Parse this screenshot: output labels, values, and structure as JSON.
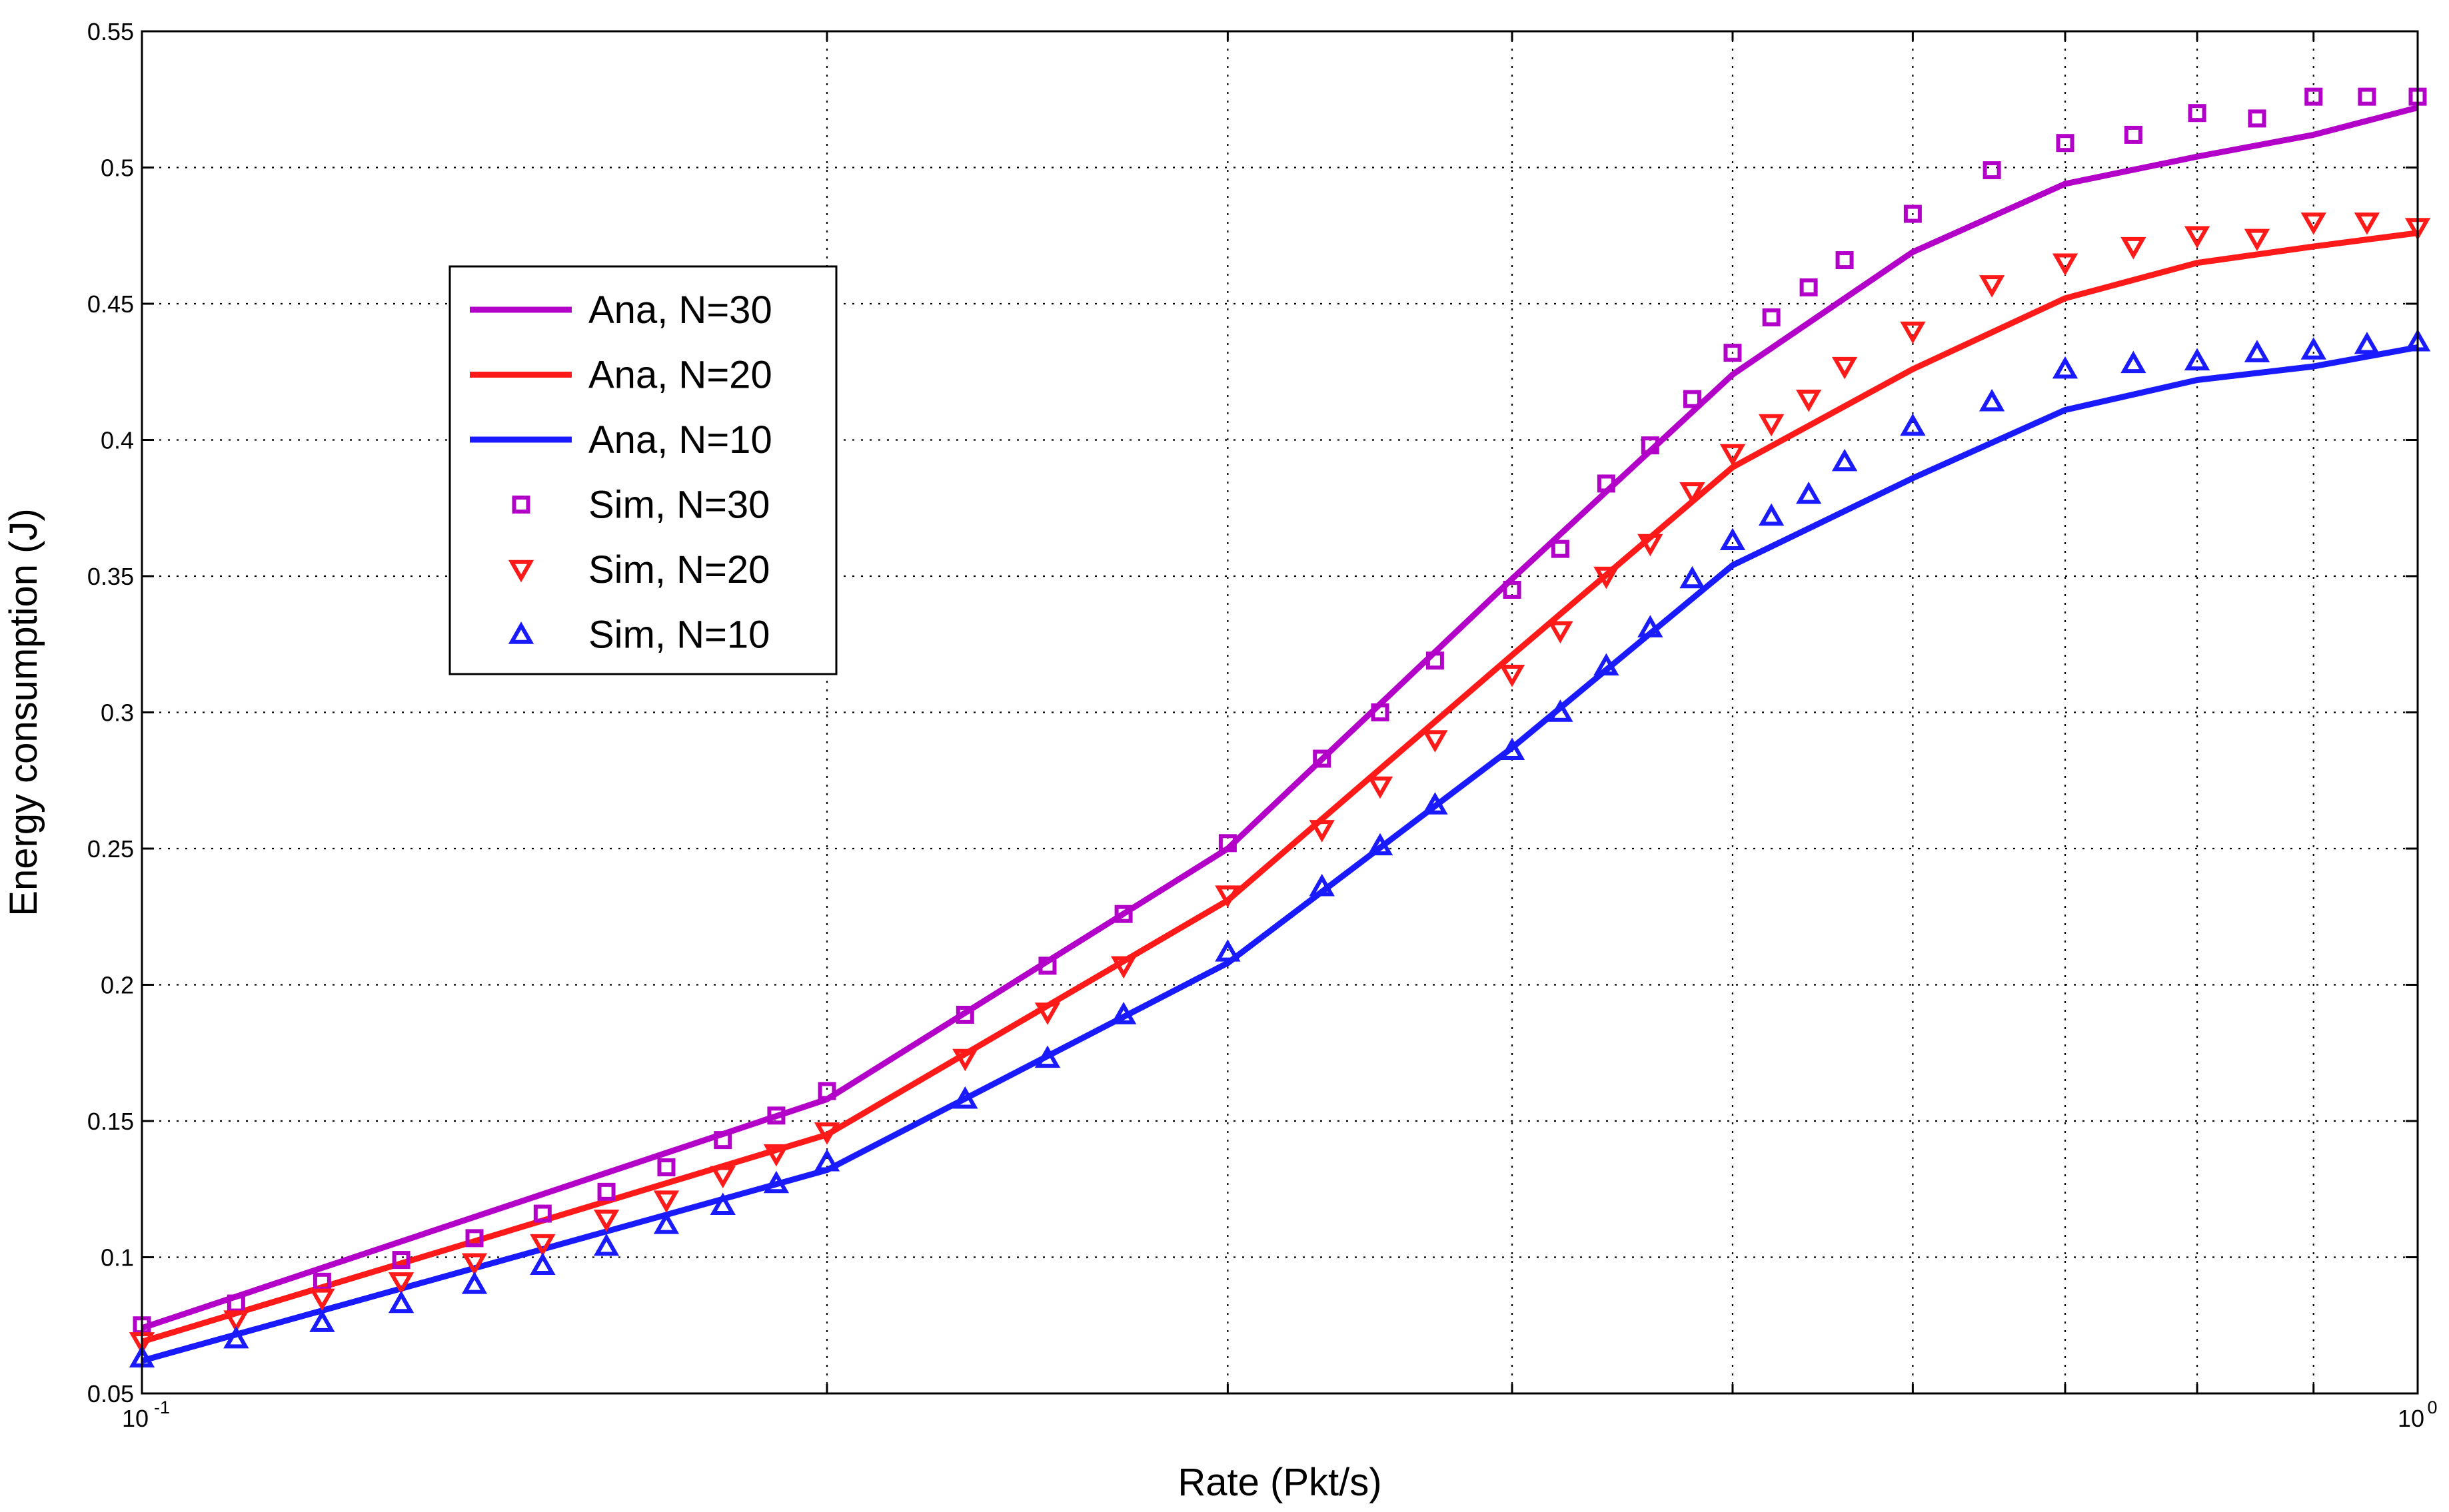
{
  "chart_data": {
    "type": "line",
    "xscale": "log",
    "xlim": [
      0.1,
      1
    ],
    "ylim": [
      0.05,
      0.55
    ],
    "grid": true,
    "xlabel": "Rate (Pkt/s)",
    "ylabel": "Energy consumption (J)",
    "yticks": [
      "0.05",
      "0.1",
      "0.15",
      "0.2",
      "0.25",
      "0.3",
      "0.35",
      "0.4",
      "0.45",
      "0.5",
      "0.55"
    ],
    "xticks_major": [
      {
        "value": 0.1,
        "base": "10",
        "exp": "-1"
      },
      {
        "value": 1,
        "base": "10",
        "exp": "0"
      }
    ],
    "xgrid": [
      0.2,
      0.3,
      0.4,
      0.5,
      0.6,
      0.7,
      0.8,
      0.9
    ],
    "legend_position": "upper-left",
    "series": [
      {
        "name": "Ana, N=30",
        "kind": "line",
        "color": "#b300c8",
        "x": [
          0.1,
          0.2,
          0.3,
          0.4,
          0.5,
          0.6,
          0.7,
          0.8,
          0.9,
          1.0
        ],
        "y": [
          0.074,
          0.158,
          0.25,
          0.349,
          0.424,
          0.469,
          0.494,
          0.504,
          0.512,
          0.522
        ]
      },
      {
        "name": "Ana, N=20",
        "kind": "line",
        "color": "#ff1a1a",
        "x": [
          0.1,
          0.2,
          0.3,
          0.4,
          0.5,
          0.6,
          0.7,
          0.8,
          0.9,
          1.0
        ],
        "y": [
          0.069,
          0.145,
          0.231,
          0.321,
          0.39,
          0.426,
          0.452,
          0.465,
          0.471,
          0.476
        ]
      },
      {
        "name": "Ana, N=10",
        "kind": "line",
        "color": "#1a1aff",
        "x": [
          0.1,
          0.2,
          0.3,
          0.4,
          0.5,
          0.6,
          0.7,
          0.8,
          0.9,
          1.0
        ],
        "y": [
          0.062,
          0.132,
          0.208,
          0.287,
          0.354,
          0.386,
          0.411,
          0.422,
          0.427,
          0.434
        ]
      },
      {
        "name": "Sim, N=30",
        "kind": "marker",
        "marker": "square",
        "color": "#b300c8",
        "x": [
          0.1,
          0.11,
          0.12,
          0.13,
          0.14,
          0.15,
          0.16,
          0.17,
          0.18,
          0.19,
          0.2,
          0.23,
          0.25,
          0.27,
          0.3,
          0.33,
          0.35,
          0.37,
          0.4,
          0.42,
          0.44,
          0.46,
          0.48,
          0.5,
          0.52,
          0.54,
          0.56,
          0.6,
          0.65,
          0.7,
          0.75,
          0.8,
          0.85,
          0.9,
          0.95,
          1.0
        ],
        "y": [
          0.075,
          0.083,
          0.091,
          0.099,
          0.107,
          0.116,
          0.124,
          0.133,
          0.143,
          0.152,
          0.161,
          0.189,
          0.207,
          0.226,
          0.252,
          0.283,
          0.3,
          0.319,
          0.345,
          0.36,
          0.384,
          0.398,
          0.415,
          0.432,
          0.445,
          0.456,
          0.466,
          0.483,
          0.499,
          0.509,
          0.512,
          0.52,
          0.518,
          0.526,
          0.526,
          0.526
        ]
      },
      {
        "name": "Sim, N=20",
        "kind": "marker",
        "marker": "triangle-down",
        "color": "#ff1a1a",
        "x": [
          0.1,
          0.11,
          0.12,
          0.13,
          0.14,
          0.15,
          0.16,
          0.17,
          0.18,
          0.19,
          0.2,
          0.23,
          0.25,
          0.27,
          0.3,
          0.33,
          0.35,
          0.37,
          0.4,
          0.42,
          0.44,
          0.46,
          0.48,
          0.5,
          0.52,
          0.54,
          0.56,
          0.6,
          0.65,
          0.7,
          0.75,
          0.8,
          0.85,
          0.9,
          0.95,
          1.0
        ],
        "y": [
          0.069,
          0.077,
          0.085,
          0.091,
          0.098,
          0.105,
          0.114,
          0.121,
          0.13,
          0.138,
          0.146,
          0.173,
          0.19,
          0.207,
          0.233,
          0.257,
          0.273,
          0.29,
          0.314,
          0.33,
          0.35,
          0.362,
          0.381,
          0.395,
          0.406,
          0.415,
          0.427,
          0.44,
          0.457,
          0.465,
          0.471,
          0.475,
          0.474,
          0.48,
          0.48,
          0.478
        ]
      },
      {
        "name": "Sim, N=10",
        "kind": "marker",
        "marker": "triangle-up",
        "color": "#1a1aff",
        "x": [
          0.1,
          0.11,
          0.12,
          0.13,
          0.14,
          0.15,
          0.16,
          0.17,
          0.18,
          0.19,
          0.2,
          0.23,
          0.25,
          0.27,
          0.3,
          0.33,
          0.35,
          0.37,
          0.4,
          0.42,
          0.44,
          0.46,
          0.48,
          0.5,
          0.52,
          0.54,
          0.56,
          0.6,
          0.65,
          0.7,
          0.75,
          0.8,
          0.85,
          0.9,
          0.95,
          1.0
        ],
        "y": [
          0.063,
          0.07,
          0.076,
          0.083,
          0.09,
          0.097,
          0.104,
          0.112,
          0.119,
          0.127,
          0.135,
          0.158,
          0.173,
          0.189,
          0.212,
          0.236,
          0.251,
          0.266,
          0.286,
          0.3,
          0.317,
          0.331,
          0.349,
          0.363,
          0.372,
          0.38,
          0.392,
          0.405,
          0.414,
          0.426,
          0.428,
          0.429,
          0.432,
          0.433,
          0.435,
          0.436
        ]
      }
    ]
  }
}
